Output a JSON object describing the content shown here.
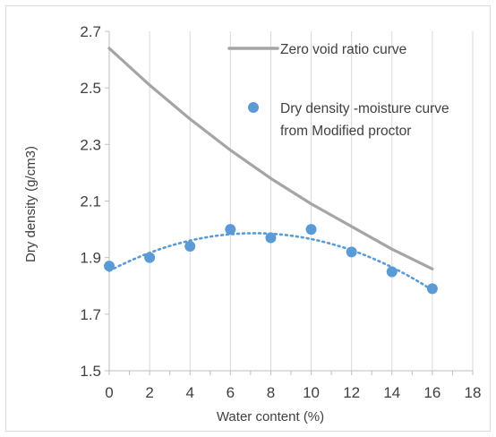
{
  "chart_data": {
    "type": "scatter",
    "xlabel": "Water content (%)",
    "ylabel": "Dry density (g/cm3)",
    "xlim": [
      0,
      18
    ],
    "ylim": [
      1.5,
      2.7
    ],
    "xticks": [
      "0",
      "2",
      "4",
      "6",
      "8",
      "10",
      "12",
      "14",
      "16",
      "18"
    ],
    "yticks": [
      "1.5",
      "1.7",
      "1.9",
      "2.1",
      "2.3",
      "2.5",
      "2.7"
    ],
    "grid": "vertical",
    "legend_position": "top-right",
    "series": [
      {
        "name": "Zero void ratio curve",
        "style": "line",
        "color": "#a5a5a5",
        "x": [
          0,
          2,
          4,
          6,
          8,
          10,
          12,
          14,
          16
        ],
        "y": [
          2.64,
          2.51,
          2.39,
          2.28,
          2.18,
          2.09,
          2.01,
          1.93,
          1.86
        ]
      },
      {
        "name": "Dry density -moisture curve from Modified proctor",
        "name_lines": [
          "Dry density -moisture curve",
          "from Modified proctor"
        ],
        "style": "markers-with-dotted-trend",
        "color": "#5b9bd5",
        "x": [
          0,
          2,
          4,
          6,
          8,
          10,
          12,
          14,
          16
        ],
        "y": [
          1.87,
          1.9,
          1.94,
          2.0,
          1.97,
          2.0,
          1.92,
          1.85,
          1.79
        ],
        "trend": "polynomial"
      }
    ]
  }
}
